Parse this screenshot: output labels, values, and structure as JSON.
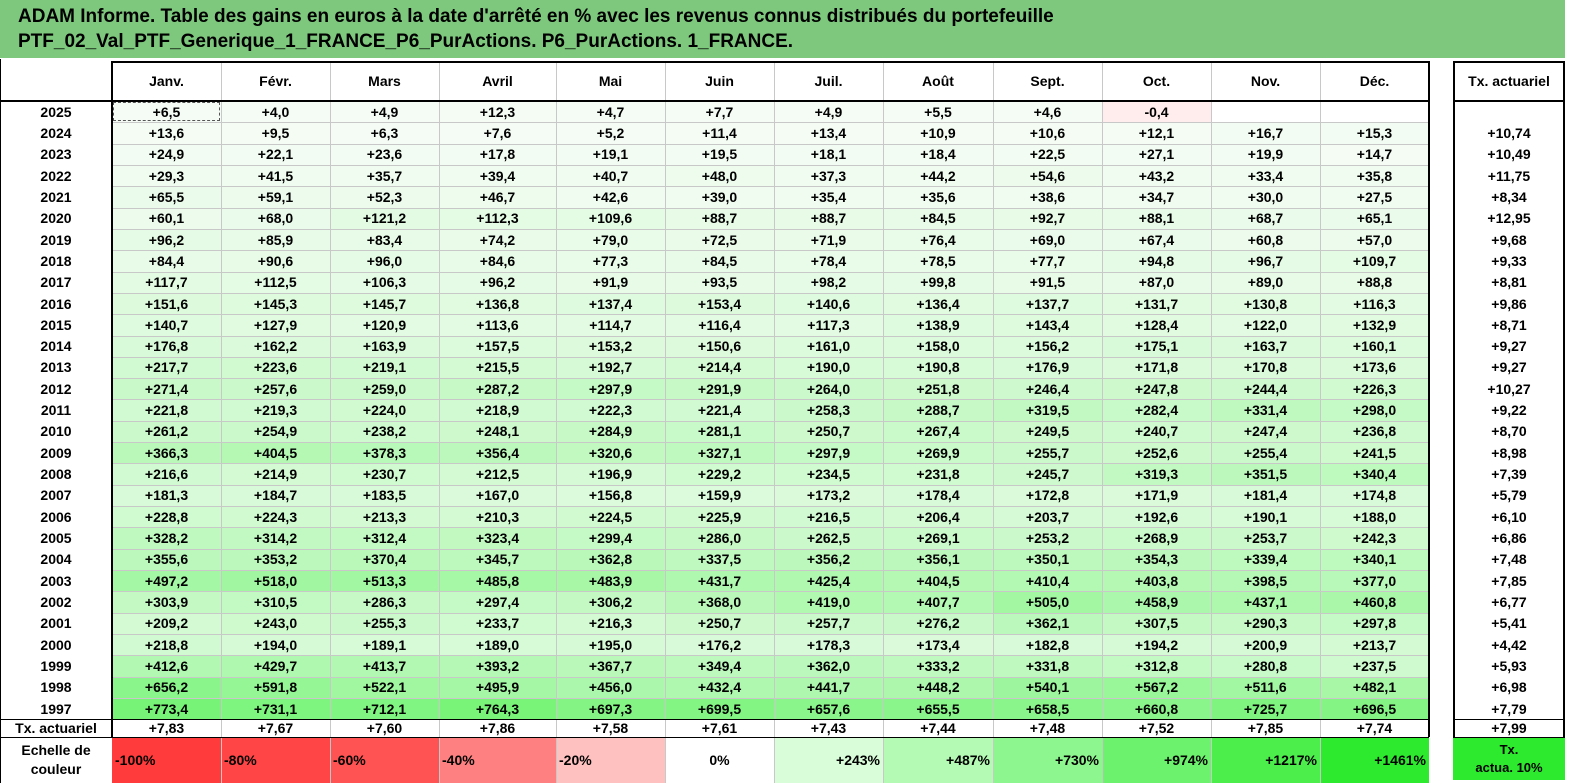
{
  "title_lines": [
    "ADAM Informe. Table des gains en euros à la date d'arrêté en % avec les revenus connus distribués du portefeuille",
    "PTF_02_Val_PTF_Generique_1_FRANCE_P6_PurActions. P6_PurActions. 1_FRANCE."
  ],
  "months": [
    "Janv.",
    "Févr.",
    "Mars",
    "Avril",
    "Mai",
    "Juin",
    "Juil.",
    "Août",
    "Sept.",
    "Oct.",
    "Nov.",
    "Déc."
  ],
  "actuarial_header": "Tx. actuariel",
  "rows": [
    {
      "year": "2025",
      "values": [
        "+6,5",
        "+4,0",
        "+4,9",
        "+12,3",
        "+4,7",
        "+7,7",
        "+4,9",
        "+5,5",
        "+4,6",
        "-0,4",
        "",
        ""
      ],
      "actuarial": ""
    },
    {
      "year": "2024",
      "values": [
        "+13,6",
        "+9,5",
        "+6,3",
        "+7,6",
        "+5,2",
        "+11,4",
        "+13,4",
        "+10,9",
        "+10,6",
        "+12,1",
        "+16,7",
        "+15,3"
      ],
      "actuarial": "+10,74"
    },
    {
      "year": "2023",
      "values": [
        "+24,9",
        "+22,1",
        "+23,6",
        "+17,8",
        "+19,1",
        "+19,5",
        "+18,1",
        "+18,4",
        "+22,5",
        "+27,1",
        "+19,9",
        "+14,7"
      ],
      "actuarial": "+10,49"
    },
    {
      "year": "2022",
      "values": [
        "+29,3",
        "+41,5",
        "+35,7",
        "+39,4",
        "+40,7",
        "+48,0",
        "+37,3",
        "+44,2",
        "+54,6",
        "+43,2",
        "+33,4",
        "+35,8"
      ],
      "actuarial": "+11,75"
    },
    {
      "year": "2021",
      "values": [
        "+65,5",
        "+59,1",
        "+52,3",
        "+46,7",
        "+42,6",
        "+39,0",
        "+35,4",
        "+35,6",
        "+38,6",
        "+34,7",
        "+30,0",
        "+27,5"
      ],
      "actuarial": "+8,34"
    },
    {
      "year": "2020",
      "values": [
        "+60,1",
        "+68,0",
        "+121,2",
        "+112,3",
        "+109,6",
        "+88,7",
        "+88,7",
        "+84,5",
        "+92,7",
        "+88,1",
        "+68,7",
        "+65,1"
      ],
      "actuarial": "+12,95"
    },
    {
      "year": "2019",
      "values": [
        "+96,2",
        "+85,9",
        "+83,4",
        "+74,2",
        "+79,0",
        "+72,5",
        "+71,9",
        "+76,4",
        "+69,0",
        "+67,4",
        "+60,8",
        "+57,0"
      ],
      "actuarial": "+9,68"
    },
    {
      "year": "2018",
      "values": [
        "+84,4",
        "+90,6",
        "+96,0",
        "+84,6",
        "+77,3",
        "+84,5",
        "+78,4",
        "+78,5",
        "+77,7",
        "+94,8",
        "+96,7",
        "+109,7"
      ],
      "actuarial": "+9,33"
    },
    {
      "year": "2017",
      "values": [
        "+117,7",
        "+112,5",
        "+106,3",
        "+96,2",
        "+91,9",
        "+93,5",
        "+98,2",
        "+99,8",
        "+91,5",
        "+87,0",
        "+89,0",
        "+88,8"
      ],
      "actuarial": "+8,81"
    },
    {
      "year": "2016",
      "values": [
        "+151,6",
        "+145,3",
        "+145,7",
        "+136,8",
        "+137,4",
        "+153,4",
        "+140,6",
        "+136,4",
        "+137,7",
        "+131,7",
        "+130,8",
        "+116,3"
      ],
      "actuarial": "+9,86"
    },
    {
      "year": "2015",
      "values": [
        "+140,7",
        "+127,9",
        "+120,9",
        "+113,6",
        "+114,7",
        "+116,4",
        "+117,3",
        "+138,9",
        "+143,4",
        "+128,4",
        "+122,0",
        "+132,9"
      ],
      "actuarial": "+8,71"
    },
    {
      "year": "2014",
      "values": [
        "+176,8",
        "+162,2",
        "+163,9",
        "+157,5",
        "+153,2",
        "+150,6",
        "+161,0",
        "+158,0",
        "+156,2",
        "+175,1",
        "+163,7",
        "+160,1"
      ],
      "actuarial": "+9,27"
    },
    {
      "year": "2013",
      "values": [
        "+217,7",
        "+223,6",
        "+219,1",
        "+215,5",
        "+192,7",
        "+214,4",
        "+190,0",
        "+190,8",
        "+176,9",
        "+171,8",
        "+170,8",
        "+173,6"
      ],
      "actuarial": "+9,27"
    },
    {
      "year": "2012",
      "values": [
        "+271,4",
        "+257,6",
        "+259,0",
        "+287,2",
        "+297,9",
        "+291,9",
        "+264,0",
        "+251,8",
        "+246,4",
        "+247,8",
        "+244,4",
        "+226,3"
      ],
      "actuarial": "+10,27"
    },
    {
      "year": "2011",
      "values": [
        "+221,8",
        "+219,3",
        "+224,0",
        "+218,9",
        "+222,3",
        "+221,4",
        "+258,3",
        "+288,7",
        "+319,5",
        "+282,4",
        "+331,4",
        "+298,0"
      ],
      "actuarial": "+9,22"
    },
    {
      "year": "2010",
      "values": [
        "+261,2",
        "+254,9",
        "+238,2",
        "+248,1",
        "+284,9",
        "+281,1",
        "+250,7",
        "+267,4",
        "+249,5",
        "+240,7",
        "+247,4",
        "+236,8"
      ],
      "actuarial": "+8,70"
    },
    {
      "year": "2009",
      "values": [
        "+366,3",
        "+404,5",
        "+378,3",
        "+356,4",
        "+320,6",
        "+327,1",
        "+297,9",
        "+269,9",
        "+255,7",
        "+252,6",
        "+255,4",
        "+241,5"
      ],
      "actuarial": "+8,98"
    },
    {
      "year": "2008",
      "values": [
        "+216,6",
        "+214,9",
        "+230,7",
        "+212,5",
        "+196,9",
        "+229,2",
        "+234,5",
        "+231,8",
        "+245,7",
        "+319,3",
        "+351,5",
        "+340,4"
      ],
      "actuarial": "+7,39"
    },
    {
      "year": "2007",
      "values": [
        "+181,3",
        "+184,7",
        "+183,5",
        "+167,0",
        "+156,8",
        "+159,9",
        "+173,2",
        "+178,4",
        "+172,8",
        "+171,9",
        "+181,4",
        "+174,8"
      ],
      "actuarial": "+5,79"
    },
    {
      "year": "2006",
      "values": [
        "+228,8",
        "+224,3",
        "+213,3",
        "+210,3",
        "+224,5",
        "+225,9",
        "+216,5",
        "+206,4",
        "+203,7",
        "+192,6",
        "+190,1",
        "+188,0"
      ],
      "actuarial": "+6,10"
    },
    {
      "year": "2005",
      "values": [
        "+328,2",
        "+314,2",
        "+312,4",
        "+323,4",
        "+299,4",
        "+286,0",
        "+262,5",
        "+269,1",
        "+253,2",
        "+268,9",
        "+253,7",
        "+242,3"
      ],
      "actuarial": "+6,86"
    },
    {
      "year": "2004",
      "values": [
        "+355,6",
        "+353,2",
        "+370,4",
        "+345,7",
        "+362,8",
        "+337,5",
        "+356,2",
        "+356,1",
        "+350,1",
        "+354,3",
        "+339,4",
        "+340,1"
      ],
      "actuarial": "+7,48"
    },
    {
      "year": "2003",
      "values": [
        "+497,2",
        "+518,0",
        "+513,3",
        "+485,8",
        "+483,9",
        "+431,7",
        "+425,4",
        "+404,5",
        "+410,4",
        "+403,8",
        "+398,5",
        "+377,0"
      ],
      "actuarial": "+7,85"
    },
    {
      "year": "2002",
      "values": [
        "+303,9",
        "+310,5",
        "+286,3",
        "+297,4",
        "+306,2",
        "+368,0",
        "+419,0",
        "+407,7",
        "+505,0",
        "+458,9",
        "+437,1",
        "+460,8"
      ],
      "actuarial": "+6,77"
    },
    {
      "year": "2001",
      "values": [
        "+209,2",
        "+243,0",
        "+255,3",
        "+233,7",
        "+216,3",
        "+250,7",
        "+257,7",
        "+276,2",
        "+362,1",
        "+307,5",
        "+290,3",
        "+297,8"
      ],
      "actuarial": "+5,41"
    },
    {
      "year": "2000",
      "values": [
        "+218,8",
        "+194,0",
        "+189,1",
        "+189,0",
        "+195,0",
        "+176,2",
        "+178,3",
        "+173,4",
        "+182,8",
        "+194,2",
        "+200,9",
        "+213,7"
      ],
      "actuarial": "+4,42"
    },
    {
      "year": "1999",
      "values": [
        "+412,6",
        "+429,7",
        "+413,7",
        "+393,2",
        "+367,7",
        "+349,4",
        "+362,0",
        "+333,2",
        "+331,8",
        "+312,8",
        "+280,8",
        "+237,5"
      ],
      "actuarial": "+5,93"
    },
    {
      "year": "1998",
      "values": [
        "+656,2",
        "+591,8",
        "+522,1",
        "+495,9",
        "+456,0",
        "+432,4",
        "+441,7",
        "+448,2",
        "+540,1",
        "+567,2",
        "+511,6",
        "+482,1"
      ],
      "actuarial": "+6,98"
    },
    {
      "year": "1997",
      "values": [
        "+773,4",
        "+731,1",
        "+712,1",
        "+764,3",
        "+697,3",
        "+699,5",
        "+657,6",
        "+655,5",
        "+658,5",
        "+660,8",
        "+725,7",
        "+696,5"
      ],
      "actuarial": "+7,79"
    }
  ],
  "footer": {
    "label": "Tx. actuariel",
    "values": [
      "+7,83",
      "+7,67",
      "+7,60",
      "+7,86",
      "+7,58",
      "+7,61",
      "+7,43",
      "+7,44",
      "+7,48",
      "+7,52",
      "+7,85",
      "+7,74"
    ],
    "actuarial": "+7,99"
  },
  "scale": {
    "label_lines": [
      "Echelle de",
      "couleur"
    ],
    "items": [
      {
        "text": "-100%",
        "color": "#ff3b3b"
      },
      {
        "text": "-80%",
        "color": "#ff4545"
      },
      {
        "text": "-60%",
        "color": "#ff5252"
      },
      {
        "text": "-40%",
        "color": "#ff8080"
      },
      {
        "text": "-20%",
        "color": "#ffc0c0"
      },
      {
        "text": "0%",
        "color": "#ffffff"
      },
      {
        "text": "+243%",
        "color": "#d8fdd8"
      },
      {
        "text": "+487%",
        "color": "#b4fab4"
      },
      {
        "text": "+730%",
        "color": "#8ef68e"
      },
      {
        "text": "+974%",
        "color": "#6cf26c"
      },
      {
        "text": "+1217%",
        "color": "#4cee4c"
      },
      {
        "text": "+1461%",
        "color": "#2eea2e"
      }
    ],
    "actuarial_lines": [
      "Tx.",
      "actua. 10%"
    ],
    "actuarial_color": "#2eea2e"
  }
}
